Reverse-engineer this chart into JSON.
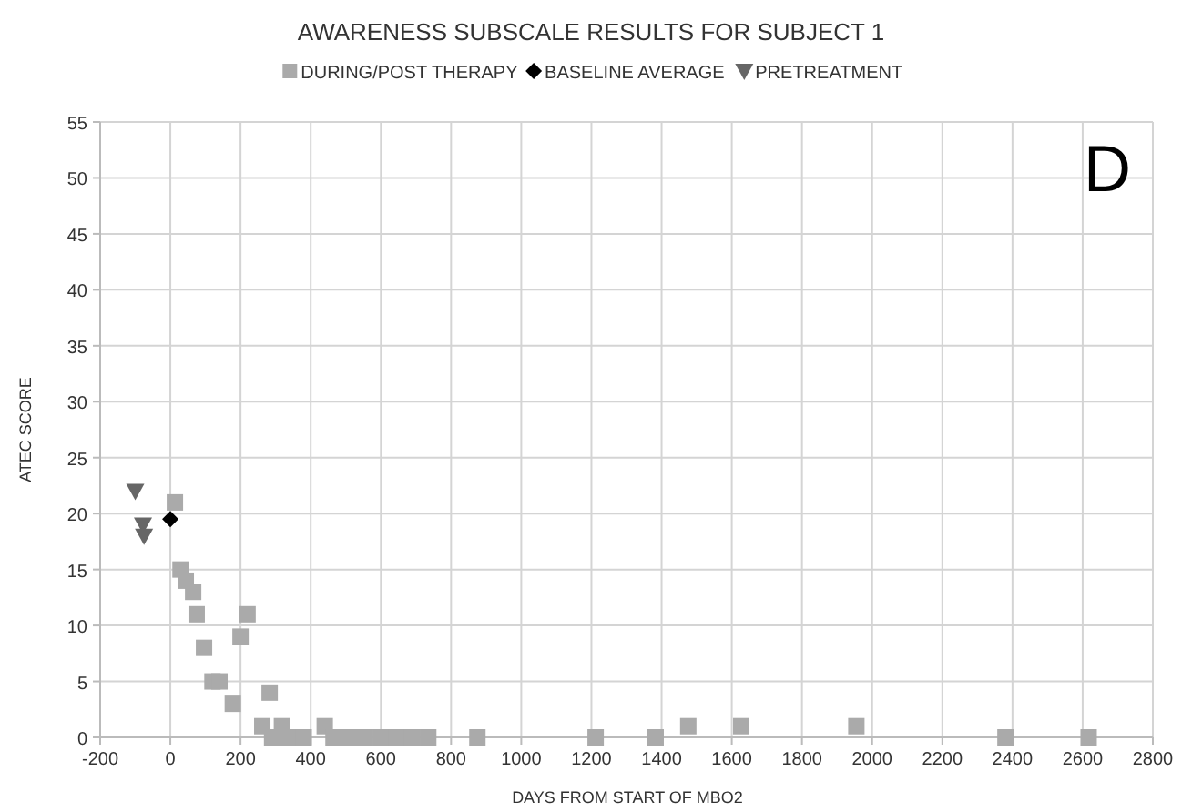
{
  "chart_data": {
    "type": "scatter",
    "title": "AWARENESS SUBSCALE RESULTS FOR SUBJECT 1",
    "xlabel": "DAYS FROM START OF MBO2",
    "ylabel": "ATEC SCORE",
    "legend": "top",
    "grid": true,
    "xlim": [
      -200,
      2800
    ],
    "xticks": [
      -200,
      0,
      200,
      400,
      600,
      800,
      1000,
      1200,
      1400,
      1600,
      1800,
      2000,
      2200,
      2400,
      2600,
      2800
    ],
    "ylim": [
      0,
      55
    ],
    "yticks": [
      0,
      5,
      10,
      15,
      20,
      25,
      30,
      35,
      40,
      45,
      50,
      55
    ],
    "annotations": [
      "D"
    ],
    "series": [
      {
        "name": "DURING/POST THERAPY",
        "color": "#aaaaaa",
        "marker": "square",
        "x": [
          13,
          29,
          44,
          65,
          75,
          96,
          120,
          140,
          178,
          200,
          220,
          262,
          283,
          318,
          290,
          335,
          380,
          440,
          465,
          510,
          555,
          600,
          645,
          690,
          735,
          875,
          1212,
          1383,
          1476,
          1627,
          1955,
          2380,
          2617
        ],
        "values": [
          21,
          15,
          14,
          13,
          11,
          8,
          5,
          5,
          3,
          9,
          11,
          1,
          4,
          1,
          0,
          0,
          0,
          1,
          0,
          0,
          0,
          0,
          0,
          0,
          0,
          0,
          0,
          0,
          1,
          1,
          1,
          0,
          0
        ]
      },
      {
        "name": "BASELINE AVERAGE",
        "color": "#000000",
        "marker": "diamond",
        "x": [
          0
        ],
        "values": [
          19.5
        ]
      },
      {
        "name": "PRETREATMENT",
        "color": "#666666",
        "marker": "triangle",
        "x": [
          -100,
          -78,
          -75
        ],
        "values": [
          22,
          19,
          18
        ]
      }
    ]
  }
}
